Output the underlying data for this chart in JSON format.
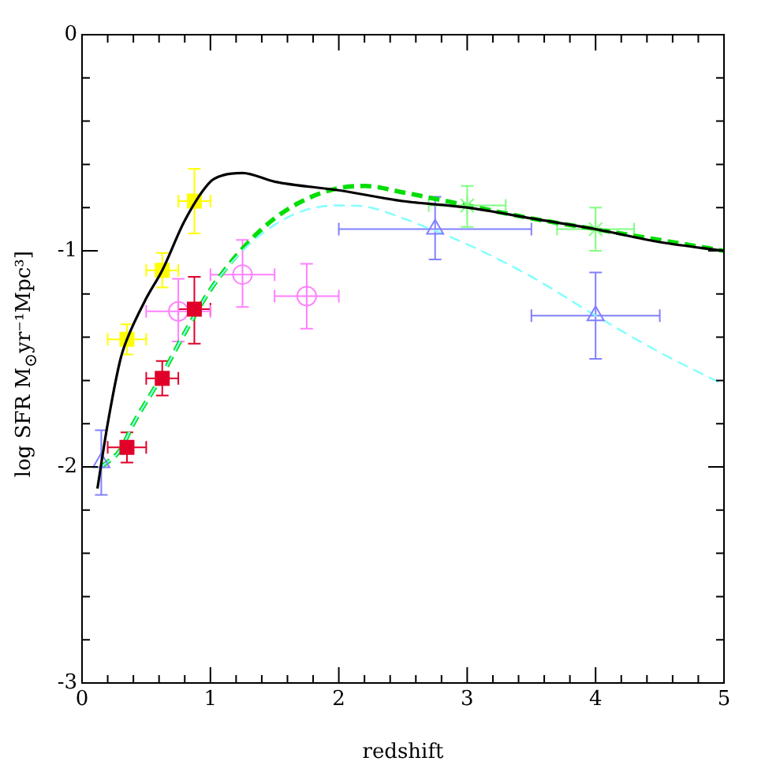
{
  "chart_data": {
    "type": "scatter",
    "xlabel": "redshift",
    "ylabel": "log SFR M$_{⊙}$yr⁻¹Mpc³]",
    "xlim": [
      0,
      5
    ],
    "ylim": [
      -3,
      0
    ],
    "xticks": [
      0,
      {
        "value": 0.2,
        "label": null
      },
      {
        "value": 0.4,
        "label": null
      },
      {
        "value": 0.6,
        "label": null
      },
      {
        "value": 0.8,
        "label": null
      },
      1,
      {
        "value": 1.2,
        "label": null
      },
      {
        "value": 1.4,
        "label": null
      },
      {
        "value": 1.6,
        "label": null
      },
      {
        "value": 1.8,
        "label": null
      },
      2,
      {
        "value": 2.2,
        "label": null
      },
      {
        "value": 2.4,
        "label": null
      },
      {
        "value": 2.6,
        "label": null
      },
      {
        "value": 2.8,
        "label": null
      },
      3,
      {
        "value": 3.2,
        "label": null
      },
      {
        "value": 3.4,
        "label": null
      },
      {
        "value": 3.6,
        "label": null
      },
      {
        "value": 3.8,
        "label": null
      },
      4,
      {
        "value": 4.2,
        "label": null
      },
      {
        "value": 4.4,
        "label": null
      },
      {
        "value": 4.6,
        "label": null
      },
      {
        "value": 4.8,
        "label": null
      },
      5
    ],
    "yticks": [
      -3,
      {
        "value": -2.8,
        "label": null
      },
      {
        "value": -2.6,
        "label": null
      },
      {
        "value": -2.4,
        "label": null
      },
      {
        "value": -2.2,
        "label": null
      },
      -2,
      {
        "value": -1.8,
        "label": null
      },
      {
        "value": -1.6,
        "label": null
      },
      {
        "value": -1.4,
        "label": null
      },
      {
        "value": -1.2,
        "label": null
      },
      -1,
      {
        "value": -0.8,
        "label": null
      },
      {
        "value": -0.6,
        "label": null
      },
      {
        "value": -0.4,
        "label": null
      },
      {
        "value": -0.2,
        "label": null
      },
      0
    ],
    "series": [
      {
        "type": "line",
        "color": "#000000",
        "line_style": "solid",
        "x": [
          0.12,
          0.2,
          0.3,
          0.35,
          0.5,
          0.625,
          0.8,
          1.0,
          1.1,
          1.25,
          1.5,
          2.0,
          2.5,
          3.0,
          3.5,
          4.0,
          4.5,
          5.0
        ],
        "values": [
          -2.1,
          -1.8,
          -1.5,
          -1.41,
          -1.22,
          -1.09,
          -0.86,
          -0.68,
          -0.65,
          -0.64,
          -0.68,
          -0.72,
          -0.77,
          -0.8,
          -0.85,
          -0.9,
          -0.96,
          -1.0
        ]
      },
      {
        "type": "line",
        "color": "#80ffff",
        "line_style": "dashed",
        "x": [
          0.15,
          0.3,
          0.4,
          0.6,
          0.8,
          1.0,
          1.25,
          1.5,
          1.75,
          2.0,
          2.25,
          2.5,
          3.0,
          3.5,
          4.0,
          4.5,
          5.0
        ],
        "values": [
          -2.0,
          -1.92,
          -1.8,
          -1.6,
          -1.38,
          -1.18,
          -1.0,
          -0.88,
          -0.81,
          -0.79,
          -0.8,
          -0.85,
          -0.97,
          -1.12,
          -1.3,
          -1.47,
          -1.62
        ]
      },
      {
        "type": "line",
        "color": "#00dd00",
        "line_style": "dashed",
        "x": [
          0.15,
          0.3,
          0.4,
          0.6,
          0.8,
          1.0,
          1.25,
          1.5,
          1.75,
          2.0,
          2.2,
          2.5,
          3.0,
          3.5,
          4.0,
          4.5,
          5.0
        ],
        "values": [
          -2.0,
          -1.92,
          -1.8,
          -1.6,
          -1.38,
          -1.18,
          -0.99,
          -0.85,
          -0.76,
          -0.71,
          -0.7,
          -0.73,
          -0.79,
          -0.85,
          -0.9,
          -0.95,
          -1.0
        ]
      },
      {
        "color": "#ffff00",
        "marker": "square",
        "x": [
          0.35,
          0.625,
          0.875
        ],
        "values": [
          -1.41,
          -1.09,
          -0.77
        ],
        "xerrors": [
          [
            0.2,
            0.5
          ],
          [
            0.5,
            0.75
          ],
          [
            0.75,
            1.0
          ]
        ],
        "errors": [
          [
            -1.48,
            -1.34
          ],
          [
            -1.17,
            -1.01
          ],
          [
            -0.92,
            -0.62
          ]
        ]
      },
      {
        "color": "#e0002a",
        "marker": "square",
        "x": [
          0.35,
          0.625,
          0.875
        ],
        "values": [
          -1.91,
          -1.59,
          -1.27
        ],
        "xerrors": [
          [
            0.2,
            0.5
          ],
          [
            0.5,
            0.75
          ],
          [
            0.75,
            1.0
          ]
        ],
        "errors": [
          [
            -1.98,
            -1.84
          ],
          [
            -1.67,
            -1.51
          ],
          [
            -1.43,
            -1.12
          ]
        ]
      },
      {
        "color": "#ff80ff",
        "marker": "circle",
        "x": [
          0.75,
          1.25,
          1.75
        ],
        "values": [
          -1.28,
          -1.11,
          -1.21
        ],
        "xerrors": [
          [
            0.5,
            1.0
          ],
          [
            1.0,
            1.5
          ],
          [
            1.5,
            2.0
          ]
        ],
        "errors": [
          [
            -1.42,
            -1.13
          ],
          [
            -1.26,
            -0.95
          ],
          [
            -1.36,
            -1.06
          ]
        ]
      },
      {
        "color": "#8080ff",
        "marker": "triangle",
        "x": [
          0.15,
          2.75,
          4.0
        ],
        "values": [
          -1.98,
          -0.9,
          -1.3
        ],
        "xerrors": [
          null,
          [
            2.0,
            3.5
          ],
          [
            3.5,
            4.5
          ]
        ],
        "errors": [
          [
            -2.13,
            -1.83
          ],
          [
            -1.04,
            -0.75
          ],
          [
            -1.5,
            -1.1
          ]
        ]
      },
      {
        "color": "#80ff80",
        "marker": "cross",
        "x": [
          3.0,
          4.0
        ],
        "values": [
          -0.79,
          -0.9
        ],
        "xerrors": [
          [
            2.7,
            3.3
          ],
          [
            3.7,
            4.3
          ]
        ],
        "errors": [
          [
            -0.89,
            -0.7
          ],
          [
            -1.0,
            -0.8
          ]
        ]
      }
    ]
  }
}
